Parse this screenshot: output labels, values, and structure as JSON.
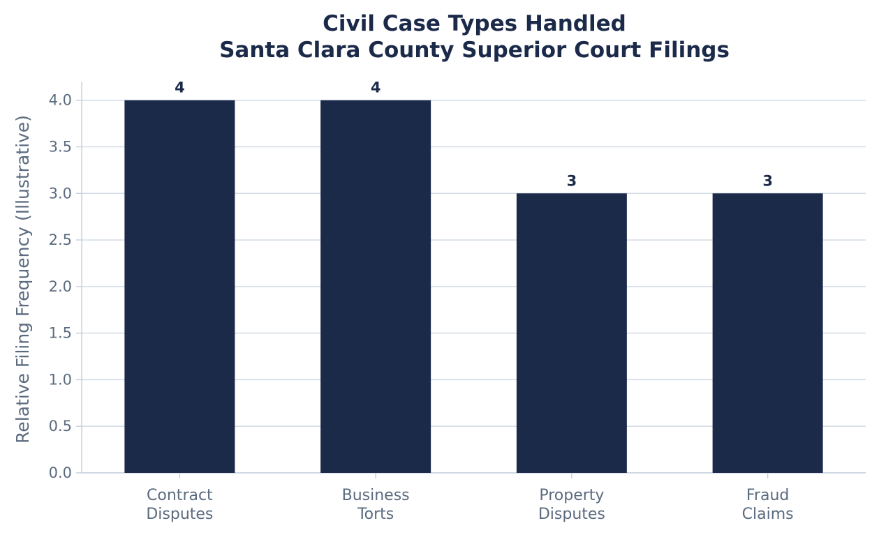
{
  "chart_data": {
    "type": "bar",
    "title_lines": [
      "Civil Case Types Handled",
      "Santa Clara County Superior Court Filings"
    ],
    "categories": [
      [
        "Contract",
        "Disputes"
      ],
      [
        "Business",
        "Torts"
      ],
      [
        "Property",
        "Disputes"
      ],
      [
        "Fraud",
        "Claims"
      ]
    ],
    "values": [
      4,
      4,
      3,
      3
    ],
    "data_labels": [
      "4",
      "4",
      "3",
      "3"
    ],
    "xlabel": "",
    "ylabel": "Relative Filing Frequency (Illustrative)",
    "ylim": [
      0,
      4.2
    ],
    "yticks": [
      0.0,
      0.5,
      1.0,
      1.5,
      2.0,
      2.5,
      3.0,
      3.5,
      4.0
    ],
    "ytick_labels": [
      "0.0",
      "0.5",
      "1.0",
      "1.5",
      "2.0",
      "2.5",
      "3.0",
      "3.5",
      "4.0"
    ],
    "grid": "horizontal",
    "colors": {
      "bar": "#1c2a4a",
      "grid": "#d3dbe6",
      "axis": "#c8d1de",
      "text": "#5b6b7f",
      "title": "#1c2a4a"
    }
  }
}
